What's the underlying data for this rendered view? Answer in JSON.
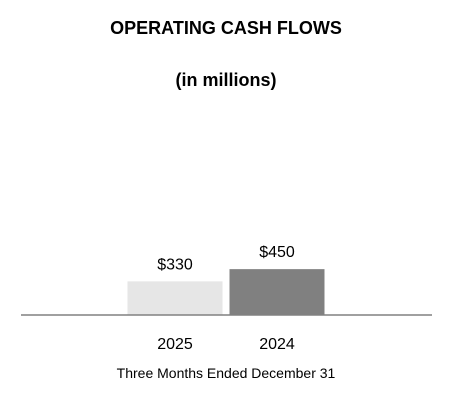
{
  "chart_data": {
    "type": "bar",
    "title": "OPERATING CASH FLOWS",
    "subtitle": "(in millions)",
    "xlabel": "Three Months Ended December 31",
    "ylabel": "",
    "categories": [
      "2025",
      "2024"
    ],
    "values": [
      330,
      450
    ],
    "value_labels": [
      "$330",
      "$450"
    ],
    "colors": [
      "#e6e6e6",
      "#808080"
    ],
    "axis_color": "#808080",
    "ylim": [
      0,
      2600
    ],
    "grid": false,
    "legend": "none"
  }
}
